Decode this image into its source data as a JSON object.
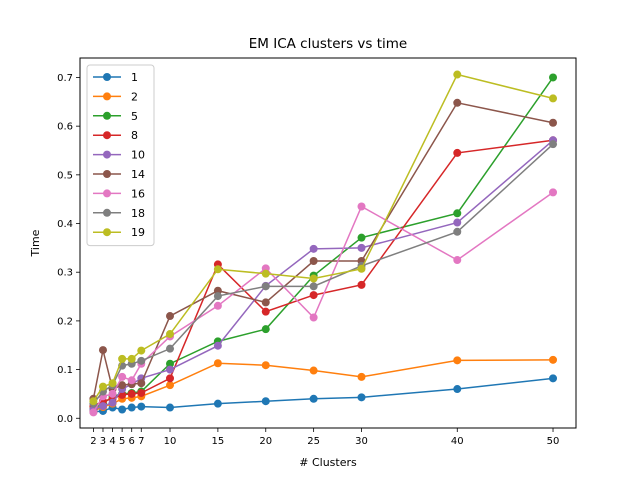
{
  "chart_data": {
    "type": "line",
    "title": "EM ICA clusters vs time",
    "xlabel": "# Clusters",
    "ylabel": "Time",
    "x": [
      2,
      3,
      4,
      5,
      6,
      7,
      10,
      15,
      20,
      25,
      30,
      40,
      50
    ],
    "x_tick_labels": [
      "2",
      "3",
      "4",
      "5",
      "6",
      "7",
      "10",
      "15",
      "20",
      "25",
      "30",
      "40",
      "50"
    ],
    "xlim": [
      0.6,
      52.4
    ],
    "ylim": [
      -0.02,
      0.74
    ],
    "y_ticks": [
      0.0,
      0.1,
      0.2,
      0.3,
      0.4,
      0.5,
      0.6,
      0.7
    ],
    "y_tick_labels": [
      "0.0",
      "0.1",
      "0.2",
      "0.3",
      "0.4",
      "0.5",
      "0.6",
      "0.7"
    ],
    "grid": false,
    "legend_position": "top-left",
    "series": [
      {
        "name": "1",
        "color": "#1f77b4",
        "values": [
          0.013,
          0.015,
          0.022,
          0.018,
          0.022,
          0.024,
          0.022,
          0.03,
          0.035,
          0.04,
          0.043,
          0.06,
          0.082
        ]
      },
      {
        "name": "2",
        "color": "#ff7f0e",
        "values": [
          0.015,
          0.023,
          0.03,
          0.04,
          0.042,
          0.045,
          0.068,
          0.113,
          0.109,
          0.098,
          0.085,
          0.119,
          0.12
        ]
      },
      {
        "name": "5",
        "color": "#2ca02c",
        "values": [
          0.02,
          0.03,
          0.045,
          0.05,
          0.052,
          0.055,
          0.112,
          0.158,
          0.183,
          0.293,
          0.371,
          0.421,
          0.7
        ]
      },
      {
        "name": "8",
        "color": "#d62728",
        "values": [
          0.025,
          0.035,
          0.04,
          0.048,
          0.05,
          0.052,
          0.082,
          0.316,
          0.219,
          0.253,
          0.274,
          0.545,
          0.571
        ]
      },
      {
        "name": "10",
        "color": "#9467bd",
        "values": [
          0.018,
          0.025,
          0.032,
          0.06,
          0.07,
          0.082,
          0.1,
          0.149,
          0.272,
          0.348,
          0.35,
          0.402,
          0.571
        ]
      },
      {
        "name": "14",
        "color": "#8c564b",
        "values": [
          0.04,
          0.14,
          0.06,
          0.068,
          0.07,
          0.072,
          0.21,
          0.262,
          0.238,
          0.323,
          0.323,
          0.648,
          0.607
        ]
      },
      {
        "name": "16",
        "color": "#e377c2",
        "values": [
          0.012,
          0.045,
          0.05,
          0.085,
          0.078,
          0.112,
          0.168,
          0.231,
          0.308,
          0.207,
          0.435,
          0.325,
          0.464
        ]
      },
      {
        "name": "18",
        "color": "#7f7f7f",
        "values": [
          0.03,
          0.055,
          0.068,
          0.108,
          0.112,
          0.118,
          0.143,
          0.251,
          0.271,
          0.271,
          0.313,
          0.383,
          0.563
        ]
      },
      {
        "name": "19",
        "color": "#bcbd22",
        "values": [
          0.035,
          0.065,
          0.072,
          0.122,
          0.122,
          0.139,
          0.173,
          0.306,
          0.297,
          0.287,
          0.307,
          0.706,
          0.657
        ]
      }
    ]
  }
}
